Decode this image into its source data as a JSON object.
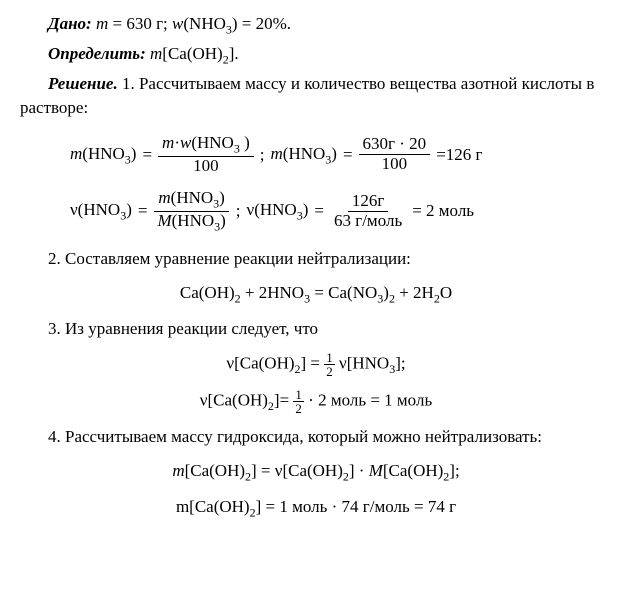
{
  "given": {
    "label": "Дано:",
    "mass": "m",
    "mass_val": " = 630 г; ",
    "w": "w",
    "w_formula": "(NHO",
    "w_sub": "3",
    "w_val": ") = 20%."
  },
  "determine": {
    "label": "Определить:",
    "m": " m",
    "formula": "[Ca(OH)",
    "sub": "2",
    "end": "]."
  },
  "solution": {
    "label": "Решение.",
    "step1_text": " 1. Рассчитываем массу и количество вещества азотной кислоты в растворе:"
  },
  "formula1": {
    "lhs1": "m",
    "lhs1_arg": "(HNO",
    "lhs1_sub": "3",
    "lhs1_close": ")",
    "eq": " = ",
    "num1a": "m",
    "num1b": "·",
    "num1c": "w",
    "num1d": "(HNO",
    "num1d_sub": "3",
    "num1e": " )",
    "den1": "100",
    "semi": " ;  ",
    "lhs2": "m",
    "lhs2_arg": "(HNO",
    "lhs2_sub": "3",
    "lhs2_close": ")",
    "eq2": " = ",
    "num2": "630г · 20",
    "den2": "100",
    "result": " =126 г"
  },
  "formula2": {
    "nu1": "ν(HNO",
    "nu1_sub": "3",
    "nu1_close": ")",
    "eq": " = ",
    "num_m": "m",
    "num_arg": "(HNO",
    "num_sub": "3",
    "num_close": ")",
    "den_M": "M",
    "den_arg": "(HNO",
    "den_sub": "3",
    "den_close": ")",
    "semi": " ;  ",
    "nu2": "ν(HNO",
    "nu2_sub": "3",
    "nu2_close": ")",
    "eq2": " = ",
    "num2": "126г",
    "den2": "63 г/моль",
    "result": " = 2 моль"
  },
  "step2": {
    "text": "2. Составляем уравнение реакции нейтрализации:",
    "equation": "Ca(OH)",
    "s1": "2",
    "plus1": " + 2HNO",
    "s2": "3",
    "eq": " = Ca(NO",
    "s3": "3",
    "close": ")",
    "s4": "2",
    "plus2": " + 2H",
    "s5": "2",
    "o": "O"
  },
  "step3": {
    "text": "3. Из уравнения реакции следует, что",
    "nu1": "ν[Ca(OH)",
    "nu1_sub": "2",
    "nu1_close": "] = ",
    "half_num": "1",
    "half_den": "2",
    "nu_hno": " ν[HNO",
    "nu_hno_sub": "3",
    "nu_hno_close": "];",
    "line2_a": "ν[Ca(OH)",
    "line2_sub": "2",
    "line2_b": "]= ",
    "line2_half_num": "1",
    "line2_half_den": "2",
    "line2_c": " · 2 моль = 1 моль"
  },
  "step4": {
    "text": "4. Рассчитываем массу гидроксида, который можно нейтрализовать:",
    "line1_a": "m",
    "line1_b": "[Ca(OH)",
    "line1_sub1": "2",
    "line1_c": "] = ν[Ca(OH)",
    "line1_sub2": "2",
    "line1_d": "] · ",
    "line1_M": "M",
    "line1_e": "[Ca(OH)",
    "line1_sub3": "2",
    "line1_f": "];",
    "line2_a": "m[Ca(OH)",
    "line2_sub": "2",
    "line2_b": "] = 1 моль · 74 г/моль = 74 г"
  }
}
